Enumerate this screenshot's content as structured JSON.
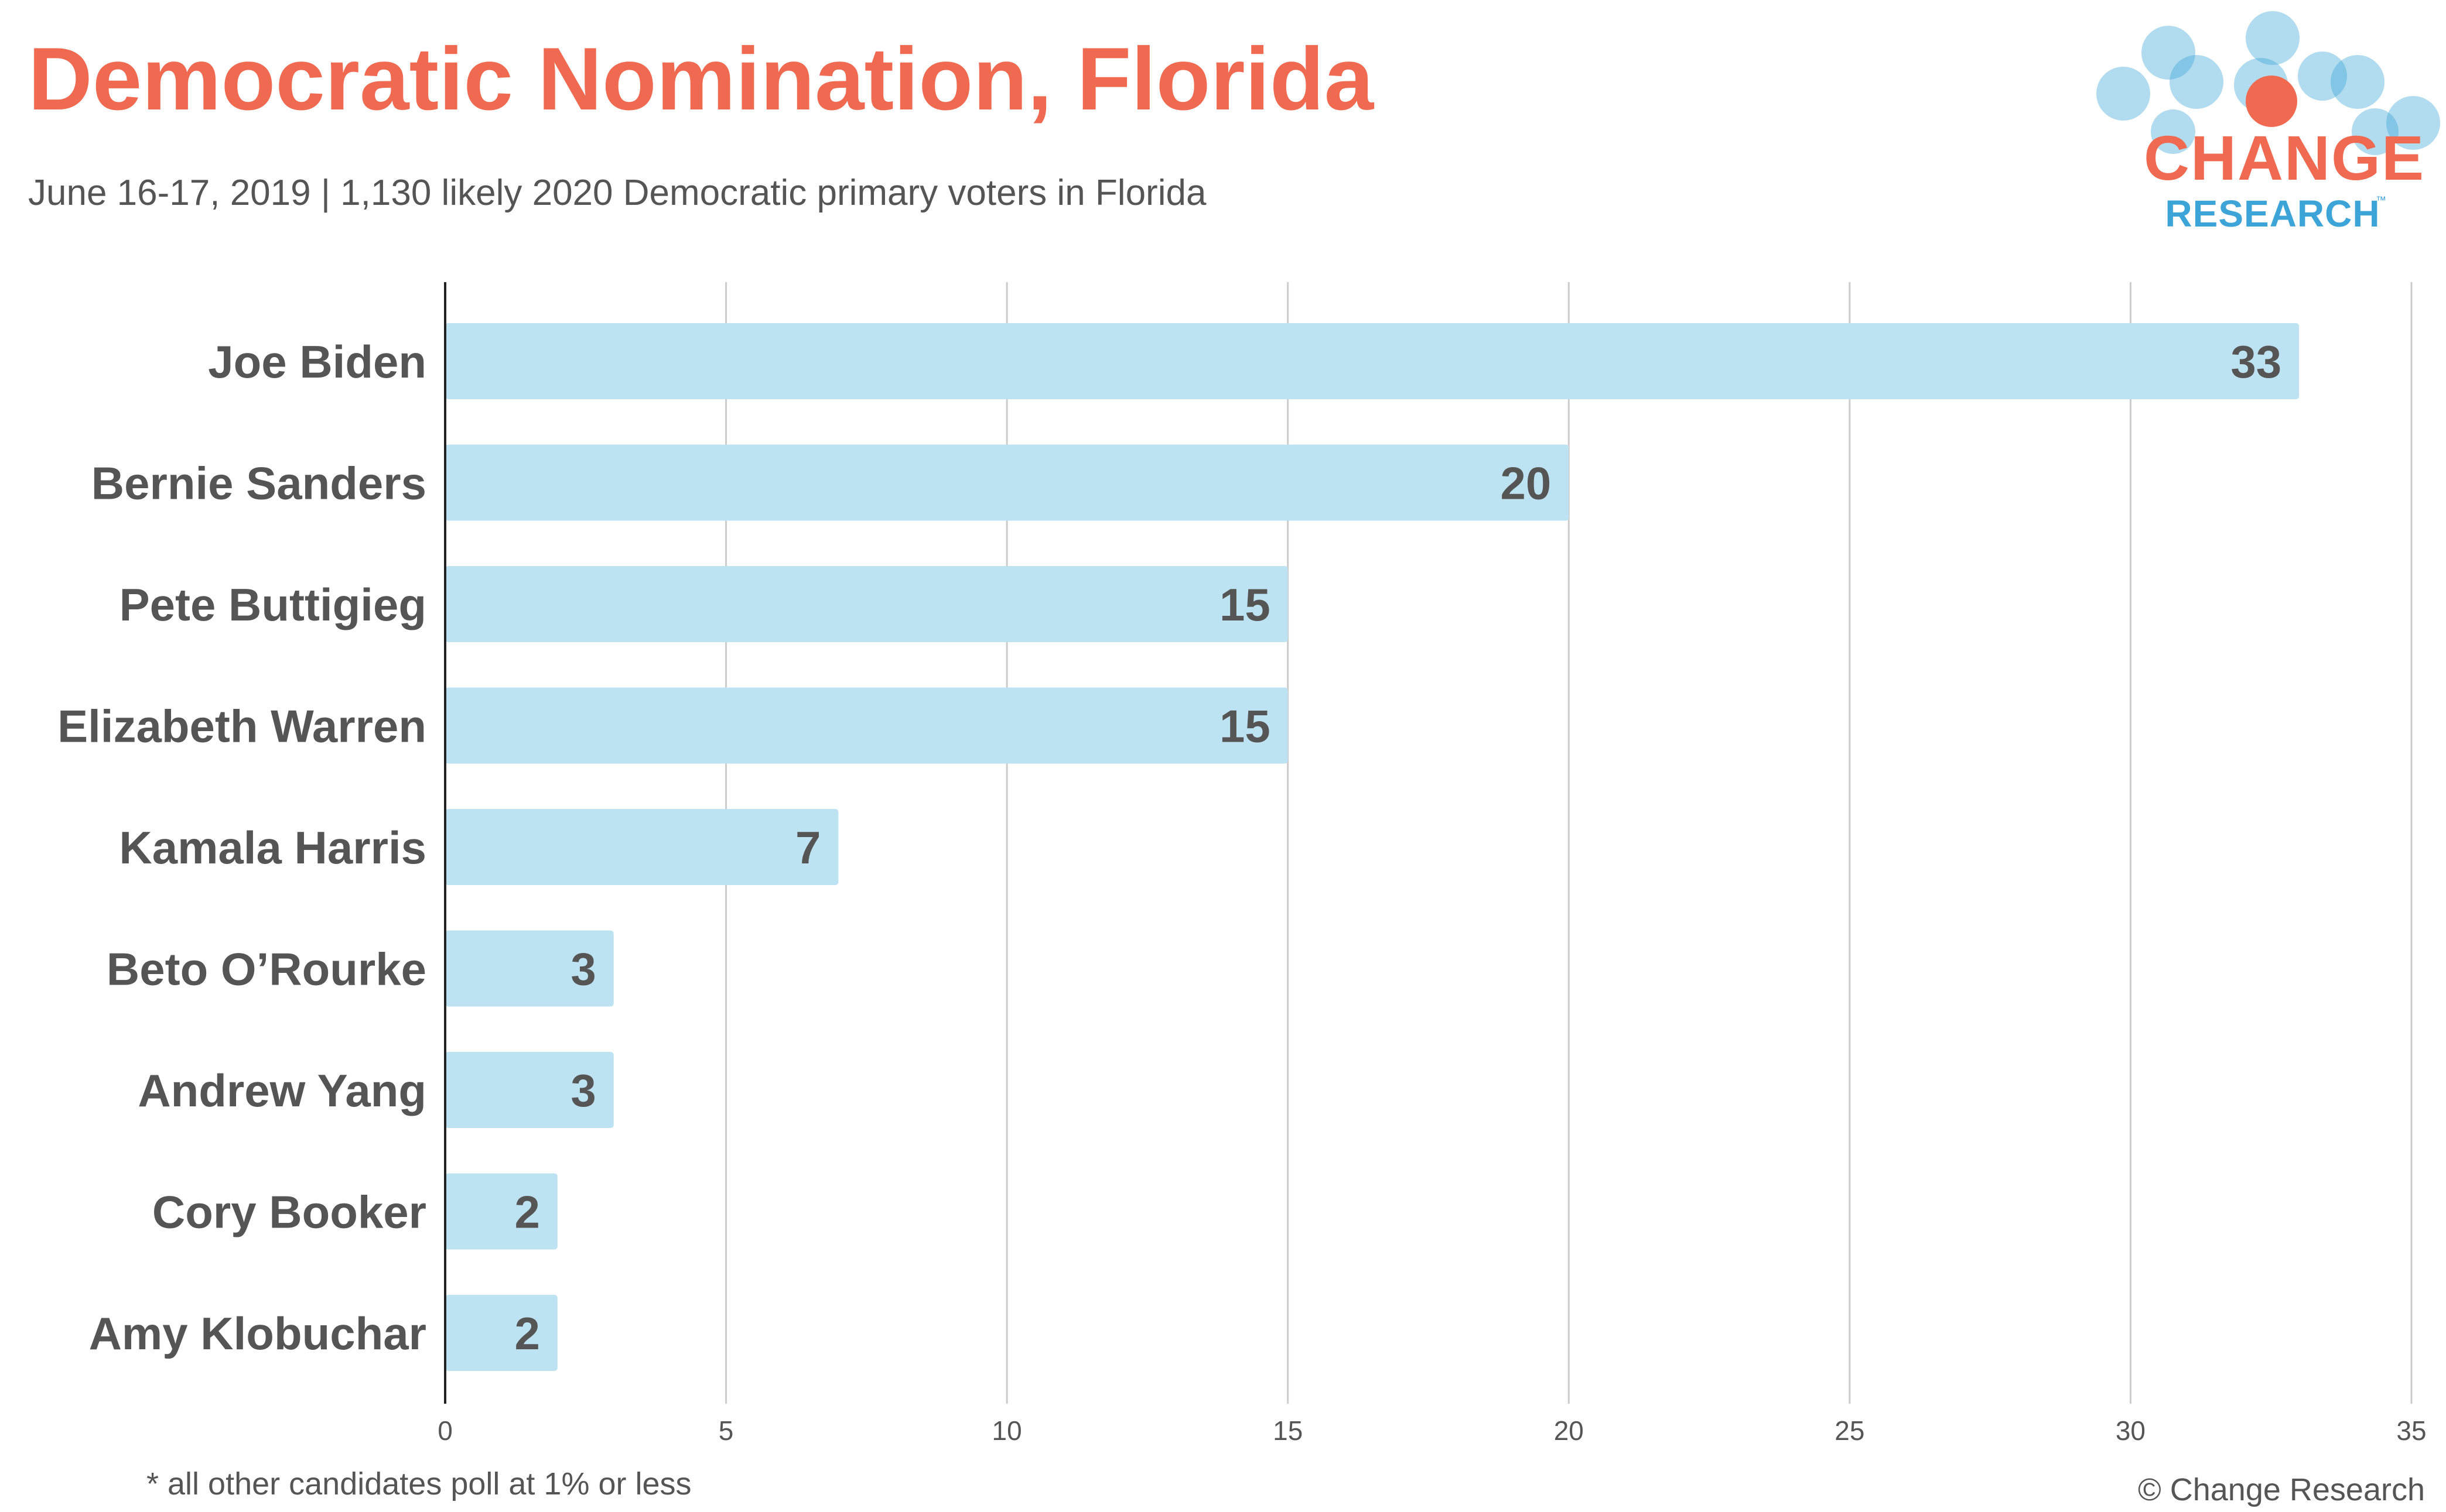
{
  "header": {
    "title": "Democratic Nomination, Florida",
    "subtitle": "June 16-17, 2019  | 1,130 likely 2020 Democratic primary voters in Florida"
  },
  "logo": {
    "word1": "CHANGE",
    "word2": "RESEARCH",
    "tm": "™"
  },
  "footer": {
    "note": "* all other candidates poll at 1% or less",
    "copyright": "© Change Research"
  },
  "colors": {
    "title": "#ef6a50",
    "bar": "#bde3f2",
    "grid": "#cccccc",
    "axis": "#222222",
    "label": "#555555",
    "logo_blue": "#3da4d8",
    "logo_orange": "#ef6a50"
  },
  "chart_data": {
    "type": "bar",
    "orientation": "horizontal",
    "categories": [
      "Joe Biden",
      "Bernie Sanders",
      "Pete Buttigieg",
      "Elizabeth Warren",
      "Kamala Harris",
      "Beto O’Rourke",
      "Andrew Yang",
      "Cory Booker",
      "Amy Klobuchar"
    ],
    "values": [
      33,
      20,
      15,
      15,
      7,
      3,
      3,
      2,
      2
    ],
    "xlim": [
      0,
      35
    ],
    "xticks": [
      0,
      5,
      10,
      15,
      20,
      25,
      30,
      35
    ],
    "grid": true,
    "data_labels": true
  }
}
